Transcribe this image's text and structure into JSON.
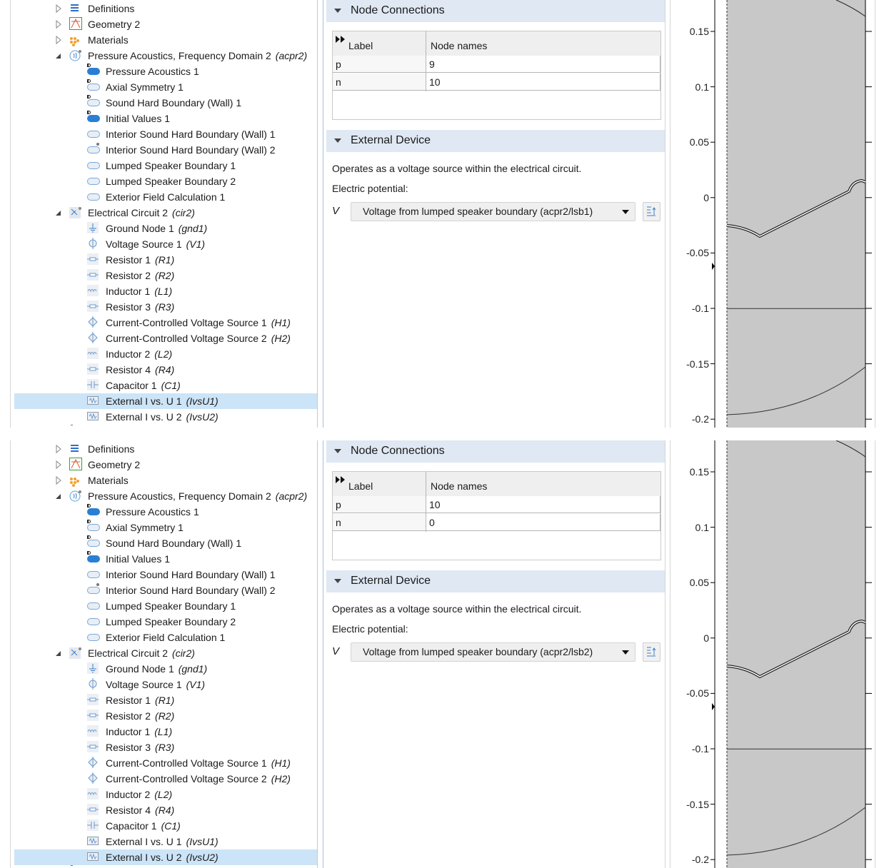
{
  "panes": [
    {
      "tree": [
        {
          "label": "Definitions",
          "tag": "",
          "level": 0,
          "expand": "closed",
          "icon": "definitions-icon"
        },
        {
          "label": "Geometry 2",
          "tag": "",
          "level": 0,
          "expand": "closed",
          "icon": "geometry-icon"
        },
        {
          "label": "Materials",
          "tag": "",
          "level": 0,
          "expand": "closed",
          "icon": "materials-icon"
        },
        {
          "label": "Pressure Acoustics, Frequency Domain 2",
          "tag": "(acpr2)",
          "level": 0,
          "expand": "open",
          "icon": "acoustics-physics-icon"
        },
        {
          "label": "Pressure Acoustics 1",
          "tag": "",
          "level": 1,
          "expand": "",
          "icon": "domain-default-icon"
        },
        {
          "label": "Axial Symmetry 1",
          "tag": "",
          "level": 1,
          "expand": "",
          "icon": "boundary-default-icon"
        },
        {
          "label": "Sound Hard Boundary (Wall) 1",
          "tag": "",
          "level": 1,
          "expand": "",
          "icon": "boundary-default-icon"
        },
        {
          "label": "Initial Values 1",
          "tag": "",
          "level": 1,
          "expand": "",
          "icon": "domain-default-icon"
        },
        {
          "label": "Interior Sound Hard Boundary (Wall) 1",
          "tag": "",
          "level": 1,
          "expand": "",
          "icon": "boundary-icon"
        },
        {
          "label": "Interior Sound Hard Boundary (Wall) 2",
          "tag": "",
          "level": 1,
          "expand": "",
          "icon": "boundary-new-icon"
        },
        {
          "label": "Lumped Speaker Boundary 1",
          "tag": "",
          "level": 1,
          "expand": "",
          "icon": "boundary-icon"
        },
        {
          "label": "Lumped Speaker Boundary 2",
          "tag": "",
          "level": 1,
          "expand": "",
          "icon": "boundary-icon"
        },
        {
          "label": "Exterior Field Calculation 1",
          "tag": "",
          "level": 1,
          "expand": "",
          "icon": "boundary-icon"
        },
        {
          "label": "Electrical Circuit 2",
          "tag": "(cir2)",
          "level": 0,
          "expand": "open",
          "icon": "circuit-physics-icon"
        },
        {
          "label": "Ground Node 1",
          "tag": "(gnd1)",
          "level": 1,
          "expand": "",
          "icon": "ground-icon"
        },
        {
          "label": "Voltage Source 1",
          "tag": "(V1)",
          "level": 1,
          "expand": "",
          "icon": "voltage-source-icon"
        },
        {
          "label": "Resistor 1",
          "tag": "(R1)",
          "level": 1,
          "expand": "",
          "icon": "resistor-icon"
        },
        {
          "label": "Resistor 2",
          "tag": "(R2)",
          "level": 1,
          "expand": "",
          "icon": "resistor-icon"
        },
        {
          "label": "Inductor 1",
          "tag": "(L1)",
          "level": 1,
          "expand": "",
          "icon": "inductor-icon"
        },
        {
          "label": "Resistor 3",
          "tag": "(R3)",
          "level": 1,
          "expand": "",
          "icon": "resistor-icon"
        },
        {
          "label": "Current-Controlled Voltage Source 1",
          "tag": "(H1)",
          "level": 1,
          "expand": "",
          "icon": "ccvs-icon"
        },
        {
          "label": "Current-Controlled Voltage Source 2",
          "tag": "(H2)",
          "level": 1,
          "expand": "",
          "icon": "ccvs-icon"
        },
        {
          "label": "Inductor 2",
          "tag": "(L2)",
          "level": 1,
          "expand": "",
          "icon": "inductor-icon"
        },
        {
          "label": "Resistor 4",
          "tag": "(R4)",
          "level": 1,
          "expand": "",
          "icon": "resistor-icon"
        },
        {
          "label": "Capacitor 1",
          "tag": "(C1)",
          "level": 1,
          "expand": "",
          "icon": "capacitor-icon"
        },
        {
          "label": "External I vs. U 1",
          "tag": "(IvsU1)",
          "level": 1,
          "expand": "",
          "icon": "external-device-icon",
          "selected": true
        },
        {
          "label": "External I vs. U 2",
          "tag": "(IvsU2)",
          "level": 1,
          "expand": "",
          "icon": "external-device-icon"
        }
      ],
      "node_section": "Node Connections",
      "table": {
        "headers": [
          "Label",
          "Node names"
        ],
        "rows": [
          [
            "p",
            "9"
          ],
          [
            "n",
            "10"
          ]
        ]
      },
      "device_section": "External Device",
      "description": "Operates as a voltage source within the electrical circuit.",
      "potential_label": "Electric potential:",
      "symbol": "V",
      "dropdown_value": "Voltage from lumped speaker boundary (acpr2/lsb1)",
      "axis_ticks": [
        "0.15",
        "0.1",
        "0.05",
        "0",
        "-0.05",
        "-0.1",
        "-0.15",
        "-0.2"
      ]
    },
    {
      "tree": [
        {
          "label": "Definitions",
          "tag": "",
          "level": 0,
          "expand": "closed",
          "icon": "definitions-icon"
        },
        {
          "label": "Geometry 2",
          "tag": "",
          "level": 0,
          "expand": "closed",
          "icon": "geometry-icon"
        },
        {
          "label": "Materials",
          "tag": "",
          "level": 0,
          "expand": "closed",
          "icon": "materials-icon"
        },
        {
          "label": "Pressure Acoustics, Frequency Domain 2",
          "tag": "(acpr2)",
          "level": 0,
          "expand": "open",
          "icon": "acoustics-physics-icon"
        },
        {
          "label": "Pressure Acoustics 1",
          "tag": "",
          "level": 1,
          "expand": "",
          "icon": "domain-default-icon"
        },
        {
          "label": "Axial Symmetry 1",
          "tag": "",
          "level": 1,
          "expand": "",
          "icon": "boundary-default-icon"
        },
        {
          "label": "Sound Hard Boundary (Wall) 1",
          "tag": "",
          "level": 1,
          "expand": "",
          "icon": "boundary-default-icon"
        },
        {
          "label": "Initial Values 1",
          "tag": "",
          "level": 1,
          "expand": "",
          "icon": "domain-default-icon"
        },
        {
          "label": "Interior Sound Hard Boundary (Wall) 1",
          "tag": "",
          "level": 1,
          "expand": "",
          "icon": "boundary-icon"
        },
        {
          "label": "Interior Sound Hard Boundary (Wall) 2",
          "tag": "",
          "level": 1,
          "expand": "",
          "icon": "boundary-new-icon"
        },
        {
          "label": "Lumped Speaker Boundary 1",
          "tag": "",
          "level": 1,
          "expand": "",
          "icon": "boundary-icon"
        },
        {
          "label": "Lumped Speaker Boundary 2",
          "tag": "",
          "level": 1,
          "expand": "",
          "icon": "boundary-icon"
        },
        {
          "label": "Exterior Field Calculation 1",
          "tag": "",
          "level": 1,
          "expand": "",
          "icon": "boundary-icon"
        },
        {
          "label": "Electrical Circuit 2",
          "tag": "(cir2)",
          "level": 0,
          "expand": "open",
          "icon": "circuit-physics-icon"
        },
        {
          "label": "Ground Node 1",
          "tag": "(gnd1)",
          "level": 1,
          "expand": "",
          "icon": "ground-icon"
        },
        {
          "label": "Voltage Source 1",
          "tag": "(V1)",
          "level": 1,
          "expand": "",
          "icon": "voltage-source-icon"
        },
        {
          "label": "Resistor 1",
          "tag": "(R1)",
          "level": 1,
          "expand": "",
          "icon": "resistor-icon"
        },
        {
          "label": "Resistor 2",
          "tag": "(R2)",
          "level": 1,
          "expand": "",
          "icon": "resistor-icon"
        },
        {
          "label": "Inductor 1",
          "tag": "(L1)",
          "level": 1,
          "expand": "",
          "icon": "inductor-icon"
        },
        {
          "label": "Resistor 3",
          "tag": "(R3)",
          "level": 1,
          "expand": "",
          "icon": "resistor-icon"
        },
        {
          "label": "Current-Controlled Voltage Source 1",
          "tag": "(H1)",
          "level": 1,
          "expand": "",
          "icon": "ccvs-icon"
        },
        {
          "label": "Current-Controlled Voltage Source 2",
          "tag": "(H2)",
          "level": 1,
          "expand": "",
          "icon": "ccvs-icon"
        },
        {
          "label": "Inductor 2",
          "tag": "(L2)",
          "level": 1,
          "expand": "",
          "icon": "inductor-icon"
        },
        {
          "label": "Resistor 4",
          "tag": "(R4)",
          "level": 1,
          "expand": "",
          "icon": "resistor-icon"
        },
        {
          "label": "Capacitor 1",
          "tag": "(C1)",
          "level": 1,
          "expand": "",
          "icon": "capacitor-icon"
        },
        {
          "label": "External I vs. U 1",
          "tag": "(IvsU1)",
          "level": 1,
          "expand": "",
          "icon": "external-device-icon"
        },
        {
          "label": "External I vs. U 2",
          "tag": "(IvsU2)",
          "level": 1,
          "expand": "",
          "icon": "external-device-icon",
          "selected": true
        }
      ],
      "node_section": "Node Connections",
      "table": {
        "headers": [
          "Label",
          "Node names"
        ],
        "rows": [
          [
            "p",
            "10"
          ],
          [
            "n",
            "0"
          ]
        ]
      },
      "device_section": "External Device",
      "description": "Operates as a voltage source within the electrical circuit.",
      "potential_label": "Electric potential:",
      "symbol": "V",
      "dropdown_value": "Voltage from lumped speaker boundary (acpr2/lsb2)",
      "axis_ticks": [
        "0.15",
        "0.1",
        "0.05",
        "0",
        "-0.05",
        "-0.1",
        "-0.15",
        "-0.2"
      ]
    }
  ],
  "colors": {
    "selection": "#cce4f7",
    "section_header": "#dfe8f3",
    "geometry_fill": "#c8c8c8",
    "domain_icon": "#2a7fd4"
  }
}
